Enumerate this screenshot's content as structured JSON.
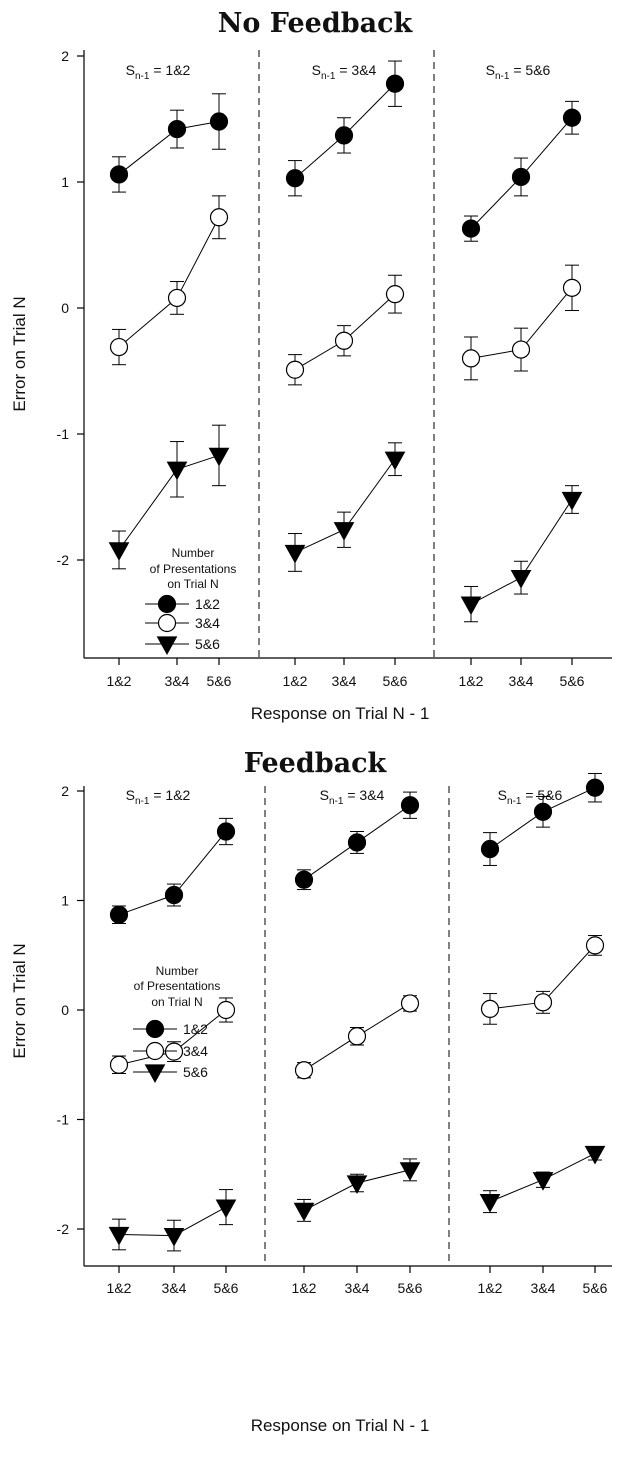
{
  "chart_data": [
    {
      "type": "line",
      "title": "No Feedback",
      "xlabel": "Response on Trial N - 1",
      "ylabel": "Error on Trial N",
      "ylim": [
        -2.75,
        2
      ],
      "yticks": [
        "2",
        "1",
        "0",
        "-1",
        "-2"
      ],
      "panels": [
        {
          "label_main": "S",
          "label_sub": "n-1",
          "label_rest": " = 1&2",
          "categories": [
            "1&2",
            "3&4",
            "5&6"
          ],
          "series": [
            {
              "name": "1&2",
              "values": [
                1.06,
                1.42,
                1.48
              ],
              "errors": [
                0.14,
                0.15,
                0.22
              ]
            },
            {
              "name": "3&4",
              "values": [
                -0.31,
                0.08,
                0.72
              ],
              "errors": [
                0.14,
                0.13,
                0.17
              ]
            },
            {
              "name": "5&6",
              "values": [
                -1.92,
                -1.28,
                -1.17
              ],
              "errors": [
                0.15,
                0.22,
                0.24
              ]
            }
          ]
        },
        {
          "label_main": "S",
          "label_sub": "n-1",
          "label_rest": " = 3&4",
          "categories": [
            "1&2",
            "3&4",
            "5&6"
          ],
          "series": [
            {
              "name": "1&2",
              "values": [
                1.03,
                1.37,
                1.78
              ],
              "errors": [
                0.14,
                0.14,
                0.18
              ]
            },
            {
              "name": "3&4",
              "values": [
                -0.49,
                -0.26,
                0.11
              ],
              "errors": [
                0.12,
                0.12,
                0.15
              ]
            },
            {
              "name": "5&6",
              "values": [
                -1.94,
                -1.76,
                -1.2
              ],
              "errors": [
                0.15,
                0.14,
                0.13
              ]
            }
          ]
        },
        {
          "label_main": "S",
          "label_sub": "n-1",
          "label_rest": " = 5&6",
          "categories": [
            "1&2",
            "3&4",
            "5&6"
          ],
          "series": [
            {
              "name": "1&2",
              "values": [
                0.63,
                1.04,
                1.51
              ],
              "errors": [
                0.1,
                0.15,
                0.13
              ]
            },
            {
              "name": "3&4",
              "values": [
                -0.4,
                -0.33,
                0.16
              ],
              "errors": [
                0.17,
                0.17,
                0.18
              ]
            },
            {
              "name": "5&6",
              "values": [
                -2.35,
                -2.14,
                -1.52
              ],
              "errors": [
                0.14,
                0.13,
                0.11
              ]
            }
          ]
        }
      ],
      "legend": {
        "title_lines": [
          "Number",
          "of Presentations",
          "on Trial N"
        ],
        "items": [
          "1&2",
          "3&4",
          "5&6"
        ],
        "placement": "bottom-left of first panel"
      }
    },
    {
      "type": "line",
      "title": "Feedback",
      "xlabel": "Response on Trial N - 1",
      "ylabel": "Error on Trial N",
      "ylim": [
        -2.25,
        2.3
      ],
      "yticks": [
        "2",
        "1",
        "0",
        "-1",
        "-2"
      ],
      "panels": [
        {
          "label_main": "S",
          "label_sub": "n-1",
          "label_rest": " = 1&2",
          "categories": [
            "1&2",
            "3&4",
            "5&6"
          ],
          "series": [
            {
              "name": "1&2",
              "values": [
                0.87,
                1.05,
                1.63
              ],
              "errors": [
                0.08,
                0.1,
                0.12
              ]
            },
            {
              "name": "3&4",
              "values": [
                -0.5,
                -0.38,
                0.0
              ],
              "errors": [
                0.08,
                0.09,
                0.11
              ]
            },
            {
              "name": "5&6",
              "values": [
                -2.05,
                -2.06,
                -1.8
              ],
              "errors": [
                0.14,
                0.14,
                0.16
              ]
            }
          ]
        },
        {
          "label_main": "S",
          "label_sub": "n-1",
          "label_rest": " = 3&4",
          "categories": [
            "1&2",
            "3&4",
            "5&6"
          ],
          "series": [
            {
              "name": "1&2",
              "values": [
                1.19,
                1.53,
                1.87
              ],
              "errors": [
                0.09,
                0.1,
                0.12
              ]
            },
            {
              "name": "3&4",
              "values": [
                -0.55,
                -0.24,
                0.06
              ],
              "errors": [
                0.07,
                0.08,
                0.07
              ]
            },
            {
              "name": "5&6",
              "values": [
                -1.83,
                -1.58,
                -1.46
              ],
              "errors": [
                0.1,
                0.08,
                0.1
              ]
            }
          ]
        },
        {
          "label_main": "S",
          "label_sub": "n-1",
          "label_rest": " = 5&6",
          "categories": [
            "1&2",
            "3&4",
            "5&6"
          ],
          "series": [
            {
              "name": "1&2",
              "values": [
                1.47,
                1.81,
                2.03
              ],
              "errors": [
                0.15,
                0.14,
                0.13
              ]
            },
            {
              "name": "3&4",
              "values": [
                0.01,
                0.07,
                0.59
              ],
              "errors": [
                0.14,
                0.1,
                0.09
              ]
            },
            {
              "name": "5&6",
              "values": [
                -1.75,
                -1.55,
                -1.31
              ],
              "errors": [
                0.1,
                0.07,
                0.06
              ]
            }
          ]
        }
      ],
      "legend": {
        "title_lines": [
          "Number",
          "of Presentations",
          "on Trial N"
        ],
        "items": [
          "1&2",
          "3&4",
          "5&6"
        ],
        "placement": "bottom-left of first panel"
      }
    }
  ]
}
